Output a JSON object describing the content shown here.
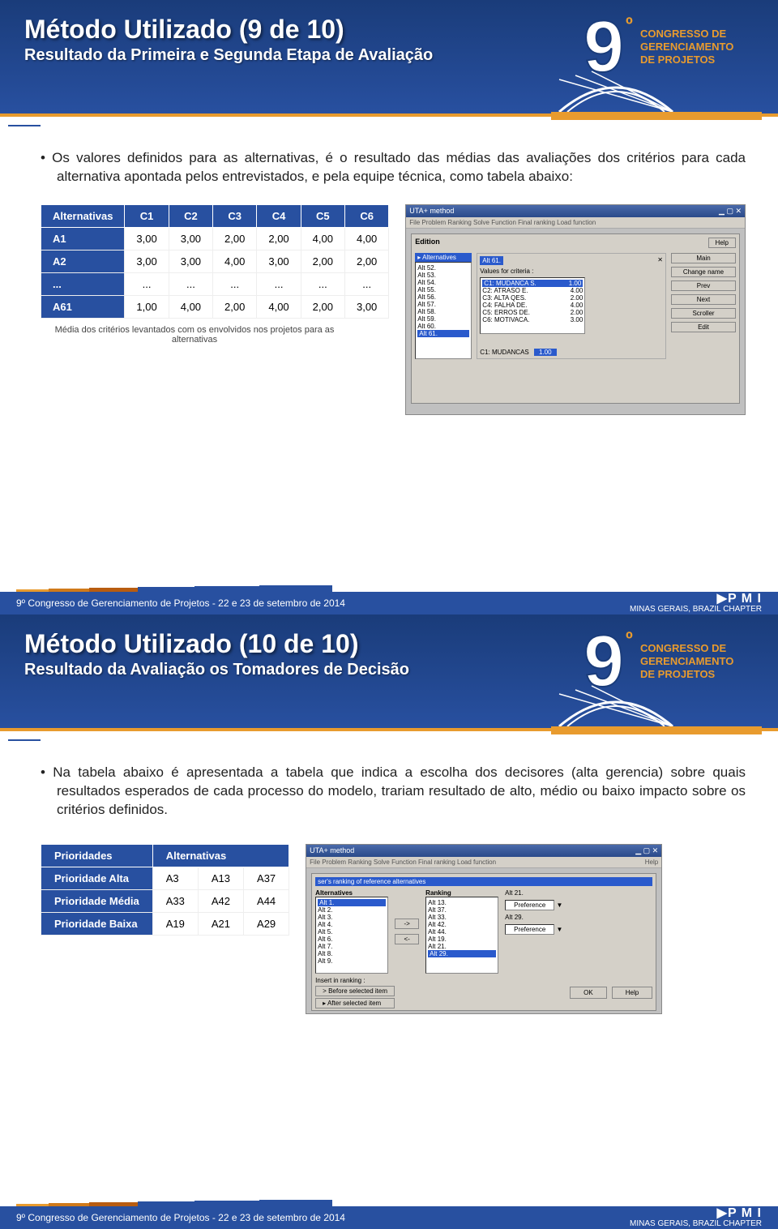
{
  "slide1": {
    "title": "Método Utilizado (9 de 10)",
    "subtitle": "Resultado da Primeira e Segunda Etapa de Avaliação",
    "bullet": "Os valores definidos para as alternativas, é o resultado das médias das avaliações dos critérios para cada alternativa apontada pelos entrevistados, e pela equipe técnica, como tabela abaixo:",
    "table": {
      "headers": [
        "Alternativas",
        "C1",
        "C2",
        "C3",
        "C4",
        "C5",
        "C6"
      ],
      "rows": [
        [
          "A1",
          "3,00",
          "3,00",
          "2,00",
          "2,00",
          "4,00",
          "4,00"
        ],
        [
          "A2",
          "3,00",
          "3,00",
          "4,00",
          "3,00",
          "2,00",
          "2,00"
        ],
        [
          "...",
          "...",
          "...",
          "...",
          "...",
          "...",
          "..."
        ],
        [
          "A61",
          "1,00",
          "4,00",
          "2,00",
          "4,00",
          "2,00",
          "3,00"
        ]
      ],
      "caption": "Média dos critérios levantados com os envolvidos nos projetos para as alternativas"
    },
    "screenshot": {
      "title": "UTA+ method",
      "menu": "File   Problem   Ranking   Solve   Function   Final ranking   Load function",
      "dialog_title": "Edition",
      "help": "Help",
      "list_label": "Alternatives",
      "list_items": [
        "Alt 52.",
        "Alt 53.",
        "Alt 54.",
        "Alt 55.",
        "Alt 56.",
        "Alt 57.",
        "Alt 58.",
        "Alt 59.",
        "Alt 60.",
        "Alt 61."
      ],
      "panel_label": "Alt 61.",
      "panel_sub": "Values for criteria :",
      "criteria": [
        [
          "C1: MUDANCA S.",
          "1.00"
        ],
        [
          "C2: ATRASO E.",
          "4.00"
        ],
        [
          "C3: ALTA QES.",
          "2.00"
        ],
        [
          "C4: FALHA DE.",
          "4.00"
        ],
        [
          "C5: ERROS DE.",
          "2.00"
        ],
        [
          "C6: MOTIVACA.",
          "3.00"
        ]
      ],
      "buttons": [
        "Main",
        "Change name",
        "Prev",
        "Next",
        "Scroller",
        "Edit"
      ],
      "bottom_field_label": "C1: MUDANCAS",
      "bottom_field_value": "1.00"
    }
  },
  "slide2": {
    "title": "Método Utilizado (10 de 10)",
    "subtitle": "Resultado da Avaliação os Tomadores de Decisão",
    "bullet": "Na tabela abaixo é apresentada a tabela que indica a escolha dos decisores (alta gerencia) sobre quais resultados esperados de cada processo do modelo, trariam resultado de alto, médio ou baixo impacto sobre os critérios definidos.",
    "table": {
      "headers": [
        "Prioridades",
        "Alternativas",
        "",
        ""
      ],
      "rows": [
        [
          "Prioridade Alta",
          "A3",
          "A13",
          "A37"
        ],
        [
          "Prioridade Média",
          "A33",
          "A42",
          "A44"
        ],
        [
          "Prioridade Baixa",
          "A19",
          "A21",
          "A29"
        ]
      ]
    },
    "screenshot": {
      "title": "UTA+ method",
      "menu": "File   Problem   Ranking   Solve   Function   Final ranking   Load function",
      "help": "Help",
      "dialog_title": "ser's ranking of reference alternatives",
      "left_label": "Alternatives",
      "left_items": [
        "Alt 1.",
        "Alt 2.",
        "Alt 3.",
        "Alt 4.",
        "Alt 5.",
        "Alt 6.",
        "Alt 7.",
        "Alt 8.",
        "Alt 9."
      ],
      "right_label": "Ranking",
      "right_items": [
        "Alt 13.",
        "Alt 37.",
        "Alt 33.",
        "Alt 42.",
        "Alt 44.",
        "Alt 19.",
        "Alt 21.",
        "Alt 29."
      ],
      "insert_label": "Insert in ranking :",
      "insert_buttons": [
        "Before selected item",
        "After selected item"
      ],
      "side_items": [
        "Alt 21.",
        "Preference",
        "Alt 29.",
        "Preference"
      ],
      "bottom_buttons": [
        "OK",
        "Help"
      ]
    }
  },
  "logo": {
    "number": "9",
    "suffix": "º",
    "line1": "CONGRESSO DE",
    "line2": "GERENCIAMENTO",
    "line3": "DE PROJETOS"
  },
  "footer": {
    "text": "9º Congresso de Gerenciamento de Projetos - 22 e 23 de setembro de 2014",
    "pmi_big": "▶P M I",
    "pmi_small": "MINAS GERAIS, BRAZIL CHAPTER",
    "stripe_colors": [
      "#e89b2e",
      "#d07a1a",
      "#b85c10",
      "#2850a0",
      "#2850a0",
      "#2850a0"
    ]
  },
  "colors": {
    "header_bg": "#2850a0",
    "orange": "#e89b2e"
  }
}
